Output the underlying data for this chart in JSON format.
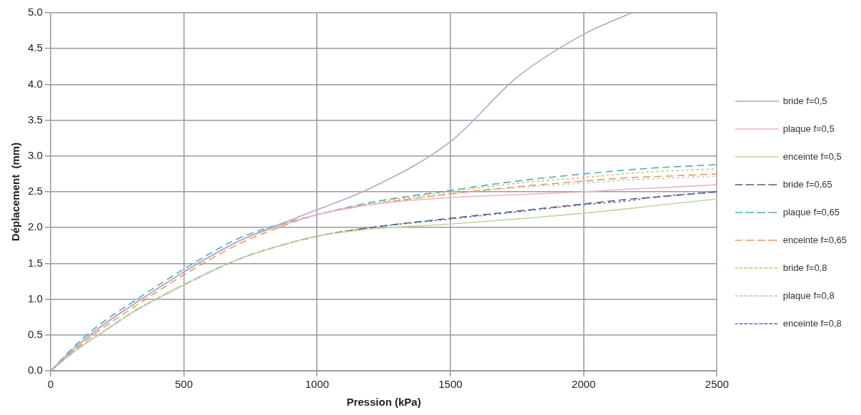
{
  "chart_data": {
    "type": "line",
    "xlabel": "Pression (kPa)",
    "ylabel": "Déplacement  (mm)",
    "x": [
      0,
      100,
      200,
      300,
      500,
      700,
      800,
      1000,
      1200,
      1500,
      1750,
      2000,
      2180,
      2250,
      2500
    ],
    "xlim": [
      0,
      2500
    ],
    "xticks": [
      0,
      500,
      1000,
      1500,
      2000,
      2500
    ],
    "ylim": [
      0,
      5
    ],
    "yticks": [
      {
        "value": 0,
        "label": "0.0"
      },
      {
        "value": 0.5,
        "label": "0.5"
      },
      {
        "value": 1,
        "label": "1.0"
      },
      {
        "value": 1.5,
        "label": "1.5"
      },
      {
        "value": 2,
        "label": "2.0"
      },
      {
        "value": 2.5,
        "label": "2.5"
      },
      {
        "value": 3,
        "label": "3.0"
      },
      {
        "value": 3.5,
        "label": "3.5"
      },
      {
        "value": 4,
        "label": "4.0"
      },
      {
        "value": 4.5,
        "label": "4.5"
      },
      {
        "value": 5,
        "label": "5.0"
      }
    ],
    "grid": true,
    "legend": "right",
    "marker": "none",
    "series": [
      {
        "name": "bride f=0,5",
        "color": "#a9a9d0",
        "line_style": "solid",
        "values": [
          0,
          0.35,
          0.65,
          0.9,
          1.38,
          1.8,
          1.96,
          2.25,
          2.55,
          3.2,
          4.1,
          4.7,
          5.0,
          null,
          null
        ]
      },
      {
        "name": "plaque f=0,5",
        "color": "#e8b4c8",
        "line_style": "solid",
        "values": [
          0,
          0.35,
          0.65,
          0.9,
          1.38,
          1.8,
          1.95,
          2.18,
          2.32,
          2.42,
          2.46,
          2.5,
          2.54,
          2.55,
          2.6
        ]
      },
      {
        "name": "enceinte f=0,5",
        "color": "#c4d79b",
        "line_style": "solid",
        "values": [
          0,
          0.3,
          0.55,
          0.8,
          1.2,
          1.55,
          1.68,
          1.88,
          1.98,
          2.05,
          2.12,
          2.2,
          2.27,
          2.3,
          2.4
        ]
      },
      {
        "name": "bride f=0,65",
        "color": "#4f5f7f",
        "line_style": "dashed",
        "values": [
          0,
          0.3,
          0.55,
          0.8,
          1.2,
          1.55,
          1.68,
          1.88,
          2.0,
          2.13,
          2.23,
          2.33,
          2.4,
          2.42,
          2.5
        ]
      },
      {
        "name": "plaque f=0,65",
        "color": "#4bacc6",
        "line_style": "dashed",
        "values": [
          0,
          0.38,
          0.69,
          0.94,
          1.42,
          1.84,
          1.98,
          2.18,
          2.35,
          2.52,
          2.65,
          2.75,
          2.81,
          2.83,
          2.88
        ]
      },
      {
        "name": "enceinte f=0,65",
        "color": "#e59b5b",
        "line_style": "dashed",
        "values": [
          0,
          0.32,
          0.61,
          0.86,
          1.34,
          1.76,
          1.92,
          2.18,
          2.32,
          2.47,
          2.57,
          2.65,
          2.7,
          2.71,
          2.75
        ]
      },
      {
        "name": "bride f=0,8",
        "color": "#d4c050",
        "line_style": "dotted",
        "values": [
          0,
          0.35,
          0.65,
          0.9,
          1.38,
          1.8,
          1.95,
          2.18,
          2.34,
          2.5,
          2.62,
          2.7,
          2.76,
          2.78,
          2.82
        ]
      },
      {
        "name": "plaque f=0,8",
        "color": "#c0c0d4",
        "line_style": "dotted",
        "values": [
          0,
          0.35,
          0.65,
          0.9,
          1.38,
          1.8,
          1.95,
          2.18,
          2.32,
          2.47,
          2.56,
          2.62,
          2.67,
          2.68,
          2.72
        ]
      },
      {
        "name": "enceinte f=0,8",
        "color": "#5a6ac0",
        "line_style": "dotted",
        "values": [
          0,
          0.3,
          0.55,
          0.8,
          1.2,
          1.55,
          1.68,
          1.88,
          2.0,
          2.12,
          2.22,
          2.32,
          2.38,
          2.42,
          2.5
        ]
      }
    ]
  }
}
